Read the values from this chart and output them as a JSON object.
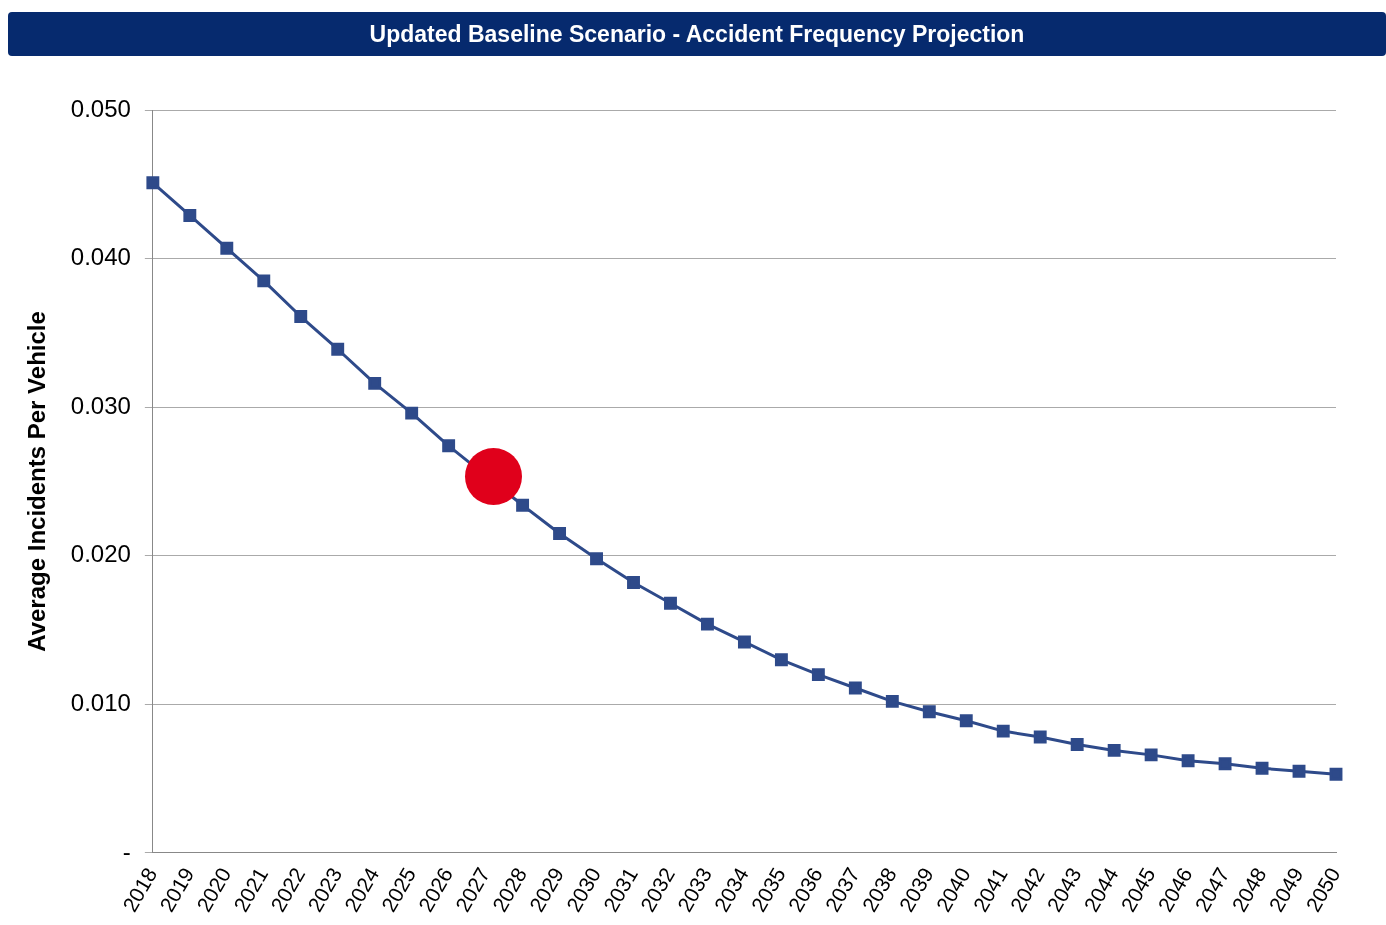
{
  "chart_data": {
    "type": "line",
    "title": "Updated Baseline Scenario - Accident Frequency Projection",
    "ylabel": "Average Incidents Per Vehicle",
    "categories": [
      "2018",
      "2019",
      "2020",
      "2021",
      "2022",
      "2023",
      "2024",
      "2025",
      "2026",
      "2027",
      "2028",
      "2029",
      "2030",
      "2031",
      "2032",
      "2033",
      "2034",
      "2035",
      "2036",
      "2037",
      "2038",
      "2039",
      "2040",
      "2041",
      "2042",
      "2043",
      "2044",
      "2045",
      "2046",
      "2047",
      "2048",
      "2049",
      "2050"
    ],
    "series": [
      {
        "color": "#2e4a8a",
        "values": [
          0.0451,
          0.0429,
          0.0407,
          0.0385,
          0.0361,
          0.0339,
          0.0316,
          0.0296,
          0.0274,
          null,
          0.0234,
          0.0215,
          0.0198,
          0.0182,
          0.0168,
          0.0154,
          0.0142,
          0.013,
          0.012,
          0.0111,
          0.0102,
          0.0095,
          0.0089,
          0.0082,
          0.0078,
          0.0073,
          0.0069,
          0.0066,
          0.0062,
          0.006,
          0.0057,
          0.0055,
          0.0053
        ]
      }
    ],
    "ylim": [
      0,
      0.05
    ],
    "yticks": [
      {
        "value": 0,
        "label": "-"
      },
      {
        "value": 0.01,
        "label": "0.010"
      },
      {
        "value": 0.02,
        "label": "0.020"
      },
      {
        "value": 0.03,
        "label": "0.030"
      },
      {
        "value": 0.04,
        "label": "0.040"
      },
      {
        "value": 0.05,
        "label": "0.050"
      }
    ],
    "grid": "y",
    "marker": "square",
    "line_style": "solid",
    "legend": false
  }
}
